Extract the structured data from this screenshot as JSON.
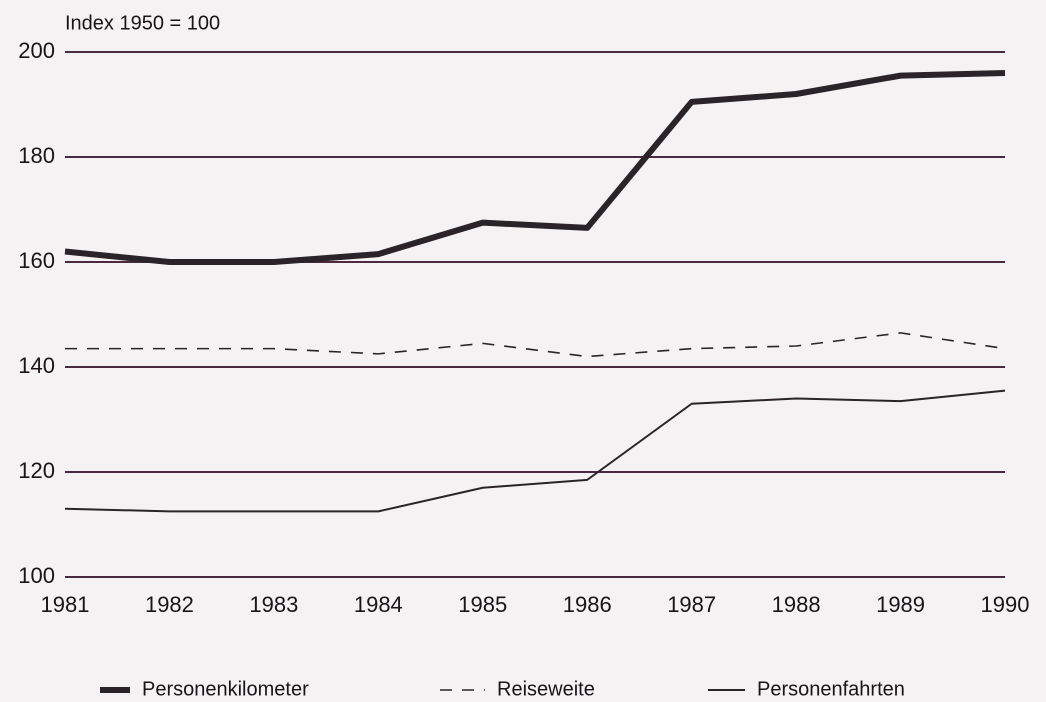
{
  "chart_data": {
    "type": "line",
    "y_label": "Index 1950 = 100",
    "categories": [
      "1981",
      "1982",
      "1983",
      "1984",
      "1985",
      "1986",
      "1987",
      "1988",
      "1989",
      "1990"
    ],
    "series": [
      {
        "name": "Personenkilometer",
        "color": "#2a2428",
        "linewidth": 6,
        "linestyle": "solid",
        "values": [
          162,
          160,
          160,
          161.5,
          167.5,
          166.5,
          190.5,
          192,
          195.5,
          196
        ]
      },
      {
        "name": "Reiseweite",
        "color": "#2a2428",
        "linewidth": 1.6,
        "linestyle": "dashed",
        "values": [
          143.5,
          143.5,
          143.5,
          142.5,
          144.5,
          142,
          143.5,
          144,
          146.5,
          143.5
        ]
      },
      {
        "name": "Personenfahrten",
        "color": "#2a2428",
        "linewidth": 2,
        "linestyle": "solid",
        "values": [
          113,
          112.5,
          112.5,
          112.5,
          117,
          118.5,
          133,
          134,
          133.5,
          135.5
        ]
      }
    ],
    "ylim": [
      100,
      200
    ],
    "yticks": [
      100,
      120,
      140,
      160,
      180,
      200
    ],
    "grid": true,
    "grid_color": "#4a2a40",
    "legend": "bottom"
  }
}
